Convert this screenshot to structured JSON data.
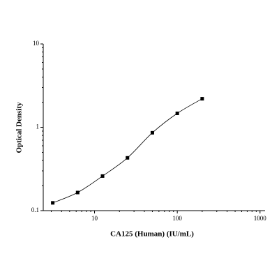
{
  "chart_data": {
    "type": "scatter",
    "x_label": "CA125 (Human) (IU/mL)",
    "y_label": "Optical Density",
    "x": [
      3.125,
      6.25,
      12.5,
      25,
      50,
      100,
      200
    ],
    "series": [
      {
        "color": "#000000",
        "values": [
          0.124,
          0.165,
          0.26,
          0.43,
          0.86,
          1.47,
          2.2
        ]
      }
    ],
    "fit_curve": true,
    "xscale": "log",
    "yscale": "log",
    "xlim": [
      2.4,
      1150
    ],
    "ylim": [
      0.1,
      10
    ],
    "xticks": [
      10,
      100,
      1000
    ],
    "yticks": [
      0.1,
      1,
      10
    ]
  }
}
